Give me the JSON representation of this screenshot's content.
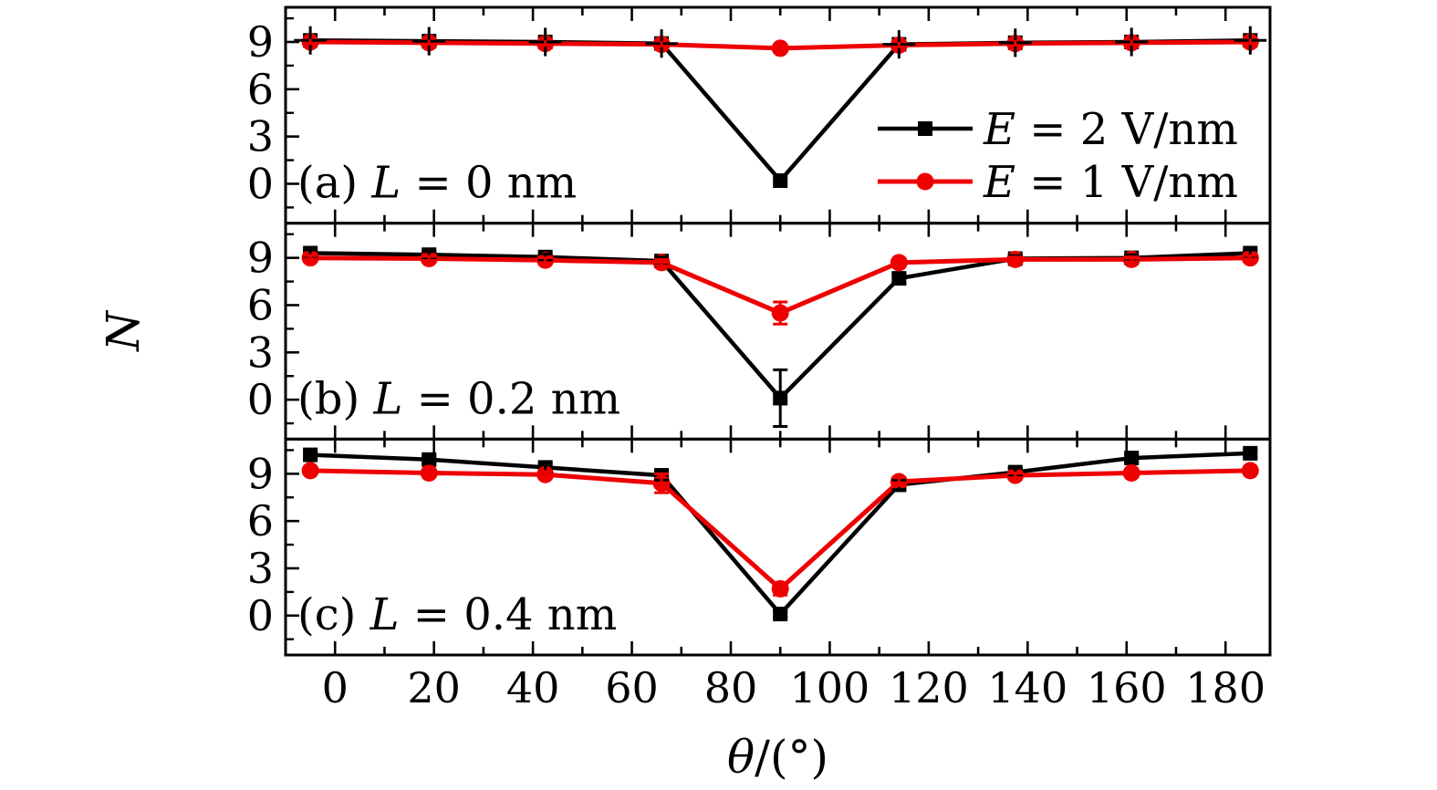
{
  "figure": {
    "background": "#ffffff",
    "frame_color": "#000000"
  },
  "chart_data": {
    "type": "line",
    "title": "",
    "xlabel": "θ/(°)",
    "ylabel": "N",
    "xlim": [
      -10,
      189
    ],
    "x_major_ticks": [
      0,
      20,
      40,
      60,
      80,
      100,
      120,
      140,
      160,
      180
    ],
    "x_minor_ticks": [
      10,
      30,
      50,
      70,
      90,
      110,
      130,
      150,
      170
    ],
    "ylim": [
      -2.5,
      11.2
    ],
    "y_major_ticks": [
      0,
      3,
      6,
      9
    ],
    "y_minor_ticks": [
      -1.5,
      1.5,
      4.5,
      7.5,
      10.5
    ],
    "grid": false,
    "x": [
      -5,
      19,
      42.5,
      66,
      90,
      114,
      137.5,
      161,
      185
    ],
    "series_meta": [
      {
        "name": "E = 2 V/nm",
        "color": "#000000",
        "marker": "square"
      },
      {
        "name": "E = 1 V/nm",
        "color": "#ee0000",
        "marker": "circle"
      }
    ],
    "legend": {
      "entries": [
        "E = 2 V/nm",
        "E = 1 V/nm"
      ],
      "position": "inside panel (a), right"
    },
    "panels": [
      {
        "id": "a",
        "label": "(a) L = 0 nm",
        "series": [
          {
            "name": "E = 2 V/nm",
            "y": [
              9.1,
              9.05,
              9.0,
              8.9,
              0.2,
              8.85,
              8.95,
              9.0,
              9.1
            ],
            "err": [
              0.9,
              0.9,
              0.9,
              0.9,
              0.3,
              0.9,
              0.9,
              0.9,
              0.9
            ],
            "xerr": [
              3.3,
              3.3,
              3.3,
              3.3,
              0,
              3.3,
              3.3,
              3.3,
              3.3
            ],
            "caps": false
          },
          {
            "name": "E = 1 V/nm",
            "y": [
              9.0,
              8.95,
              8.9,
              8.85,
              8.6,
              8.8,
              8.9,
              8.95,
              9.0
            ],
            "err": [
              0.2,
              0.2,
              0.2,
              0.2,
              0.2,
              0.2,
              0.2,
              0.2,
              0.2
            ],
            "caps": false
          }
        ]
      },
      {
        "id": "b",
        "label": "(b) L = 0.2 nm",
        "series": [
          {
            "name": "E = 2 V/nm",
            "y": [
              9.3,
              9.2,
              9.05,
              8.8,
              0.1,
              7.7,
              8.95,
              9.0,
              9.3
            ],
            "err": [
              0.2,
              0.2,
              0.2,
              0.25,
              1.8,
              0.3,
              0.2,
              0.2,
              0.2
            ],
            "caps": true
          },
          {
            "name": "E = 1 V/nm",
            "y": [
              9.0,
              8.95,
              8.85,
              8.7,
              5.5,
              8.7,
              8.9,
              8.9,
              9.0
            ],
            "err": [
              0.15,
              0.15,
              0.15,
              0.2,
              0.7,
              0.2,
              0.15,
              0.15,
              0.15
            ],
            "caps": true
          }
        ]
      },
      {
        "id": "c",
        "label": "(c) L = 0.4 nm",
        "series": [
          {
            "name": "E = 2 V/nm",
            "y": [
              10.2,
              9.9,
              9.4,
              8.9,
              0.1,
              8.3,
              9.1,
              10.0,
              10.3
            ],
            "err": [
              0.25,
              0.25,
              0.25,
              0.3,
              0.2,
              0.3,
              0.25,
              0.25,
              0.25
            ],
            "caps": true
          },
          {
            "name": "E = 1 V/nm",
            "y": [
              9.2,
              9.05,
              8.95,
              8.4,
              1.7,
              8.5,
              8.9,
              9.05,
              9.2
            ],
            "err": [
              0.15,
              0.15,
              0.2,
              0.6,
              0.4,
              0.25,
              0.15,
              0.15,
              0.15
            ],
            "caps": true
          }
        ]
      }
    ]
  }
}
